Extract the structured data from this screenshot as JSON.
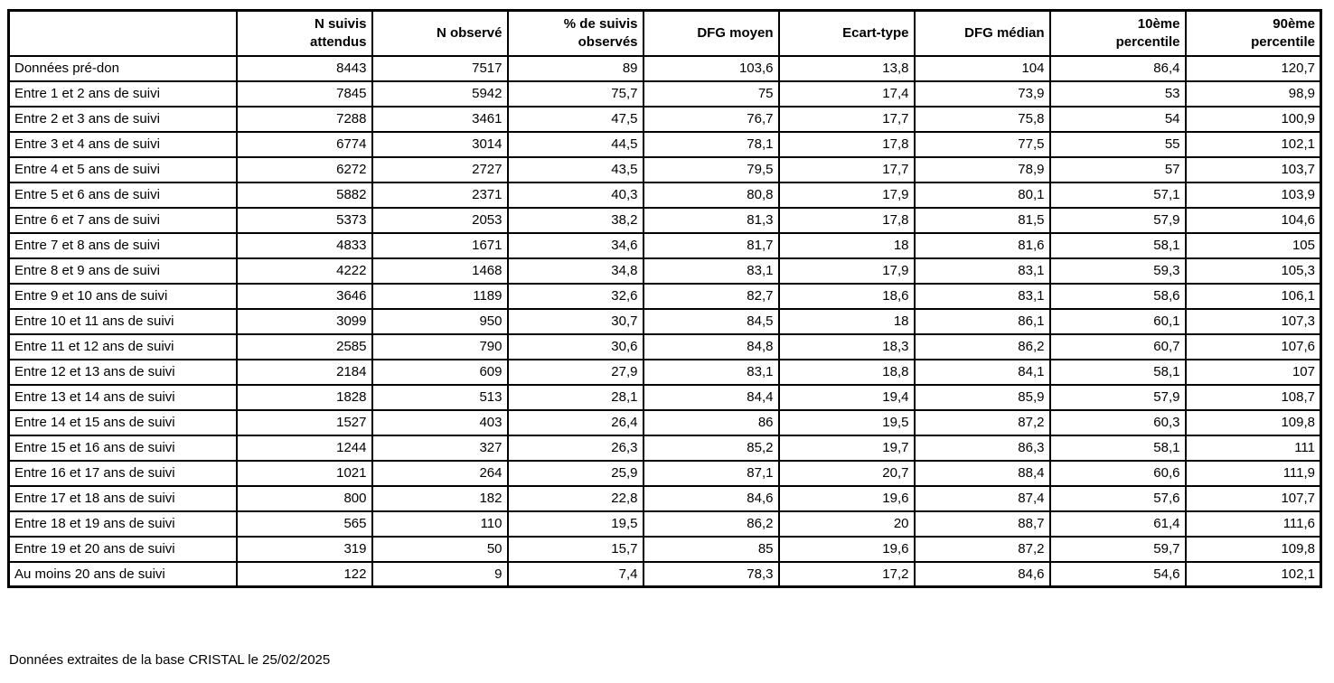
{
  "colors": {
    "background": "#ffffff",
    "border": "#000000",
    "text": "#000000"
  },
  "table": {
    "columns": [
      {
        "lines": [
          ""
        ]
      },
      {
        "lines": [
          "N suivis",
          "attendus"
        ]
      },
      {
        "lines": [
          "N observé"
        ]
      },
      {
        "lines": [
          "% de suivis",
          "observés"
        ]
      },
      {
        "lines": [
          "DFG moyen"
        ]
      },
      {
        "lines": [
          "Ecart-type"
        ]
      },
      {
        "lines": [
          "DFG médian"
        ]
      },
      {
        "lines": [
          "10ème",
          "percentile"
        ]
      },
      {
        "lines": [
          "90ème",
          "percentile"
        ]
      }
    ],
    "rows": [
      {
        "label": "Données pré-don",
        "values": [
          "8443",
          "7517",
          "89",
          "103,6",
          "13,8",
          "104",
          "86,4",
          "120,7"
        ]
      },
      {
        "label": "Entre 1 et 2 ans de suivi",
        "values": [
          "7845",
          "5942",
          "75,7",
          "75",
          "17,4",
          "73,9",
          "53",
          "98,9"
        ]
      },
      {
        "label": "Entre 2 et 3 ans de suivi",
        "values": [
          "7288",
          "3461",
          "47,5",
          "76,7",
          "17,7",
          "75,8",
          "54",
          "100,9"
        ]
      },
      {
        "label": "Entre 3 et 4 ans de suivi",
        "values": [
          "6774",
          "3014",
          "44,5",
          "78,1",
          "17,8",
          "77,5",
          "55",
          "102,1"
        ]
      },
      {
        "label": "Entre 4 et 5 ans de suivi",
        "values": [
          "6272",
          "2727",
          "43,5",
          "79,5",
          "17,7",
          "78,9",
          "57",
          "103,7"
        ]
      },
      {
        "label": "Entre 5 et 6 ans de suivi",
        "values": [
          "5882",
          "2371",
          "40,3",
          "80,8",
          "17,9",
          "80,1",
          "57,1",
          "103,9"
        ]
      },
      {
        "label": "Entre 6 et 7 ans de suivi",
        "values": [
          "5373",
          "2053",
          "38,2",
          "81,3",
          "17,8",
          "81,5",
          "57,9",
          "104,6"
        ]
      },
      {
        "label": "Entre 7 et 8 ans de suivi",
        "values": [
          "4833",
          "1671",
          "34,6",
          "81,7",
          "18",
          "81,6",
          "58,1",
          "105"
        ]
      },
      {
        "label": "Entre 8 et 9 ans de suivi",
        "values": [
          "4222",
          "1468",
          "34,8",
          "83,1",
          "17,9",
          "83,1",
          "59,3",
          "105,3"
        ]
      },
      {
        "label": "Entre 9 et 10 ans de suivi",
        "values": [
          "3646",
          "1189",
          "32,6",
          "82,7",
          "18,6",
          "83,1",
          "58,6",
          "106,1"
        ]
      },
      {
        "label": "Entre 10 et 11 ans de suivi",
        "values": [
          "3099",
          "950",
          "30,7",
          "84,5",
          "18",
          "86,1",
          "60,1",
          "107,3"
        ]
      },
      {
        "label": "Entre 11 et 12 ans de suivi",
        "values": [
          "2585",
          "790",
          "30,6",
          "84,8",
          "18,3",
          "86,2",
          "60,7",
          "107,6"
        ]
      },
      {
        "label": "Entre 12 et 13 ans de suivi",
        "values": [
          "2184",
          "609",
          "27,9",
          "83,1",
          "18,8",
          "84,1",
          "58,1",
          "107"
        ]
      },
      {
        "label": "Entre 13 et 14 ans de suivi",
        "values": [
          "1828",
          "513",
          "28,1",
          "84,4",
          "19,4",
          "85,9",
          "57,9",
          "108,7"
        ]
      },
      {
        "label": "Entre 14 et 15 ans de suivi",
        "values": [
          "1527",
          "403",
          "26,4",
          "86",
          "19,5",
          "87,2",
          "60,3",
          "109,8"
        ]
      },
      {
        "label": "Entre 15 et 16 ans de suivi",
        "values": [
          "1244",
          "327",
          "26,3",
          "85,2",
          "19,7",
          "86,3",
          "58,1",
          "111"
        ]
      },
      {
        "label": "Entre 16 et 17 ans de suivi",
        "values": [
          "1021",
          "264",
          "25,9",
          "87,1",
          "20,7",
          "88,4",
          "60,6",
          "111,9"
        ]
      },
      {
        "label": "Entre 17 et 18 ans de suivi",
        "values": [
          "800",
          "182",
          "22,8",
          "84,6",
          "19,6",
          "87,4",
          "57,6",
          "107,7"
        ]
      },
      {
        "label": "Entre 18 et 19 ans de suivi",
        "values": [
          "565",
          "110",
          "19,5",
          "86,2",
          "20",
          "88,7",
          "61,4",
          "111,6"
        ]
      },
      {
        "label": "Entre 19 et 20 ans de suivi",
        "values": [
          "319",
          "50",
          "15,7",
          "85",
          "19,6",
          "87,2",
          "59,7",
          "109,8"
        ]
      },
      {
        "label": "Au moins 20 ans de suivi",
        "values": [
          "122",
          "9",
          "7,4",
          "78,3",
          "17,2",
          "84,6",
          "54,6",
          "102,1"
        ]
      }
    ]
  },
  "footer": {
    "note": "Données extraites de la base CRISTAL le 25/02/2025"
  }
}
